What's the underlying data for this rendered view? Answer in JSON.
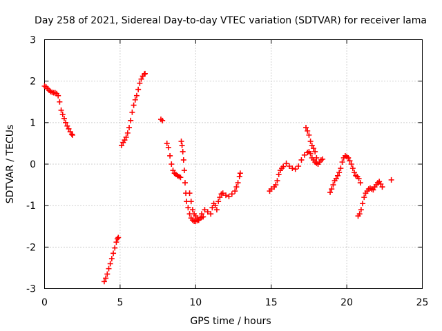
{
  "chart_data": {
    "type": "scatter",
    "title": "Day 258 of 2021, Sidereal Day-to-day VTEC variation (SDTVAR) for receiver lama",
    "xlabel": "GPS time / hours",
    "ylabel": "SDTVAR / TECUs",
    "xlim": [
      0,
      25
    ],
    "ylim": [
      -3,
      3
    ],
    "xticks": [
      0,
      5,
      10,
      15,
      20,
      25
    ],
    "yticks": [
      -3,
      -2,
      -1,
      0,
      1,
      2,
      3
    ],
    "grid": true,
    "legend": "none",
    "marker": "+",
    "color": "#ff0000",
    "series": [
      {
        "points": [
          [
            0.0,
            1.88
          ],
          [
            0.1,
            1.86
          ],
          [
            0.2,
            1.82
          ],
          [
            0.3,
            1.78
          ],
          [
            0.4,
            1.75
          ],
          [
            0.5,
            1.73
          ],
          [
            0.6,
            1.72
          ],
          [
            0.7,
            1.72
          ],
          [
            0.8,
            1.7
          ],
          [
            0.9,
            1.65
          ],
          [
            1.0,
            1.5
          ],
          [
            1.1,
            1.3
          ],
          [
            1.2,
            1.2
          ],
          [
            1.3,
            1.1
          ],
          [
            1.4,
            1.0
          ],
          [
            1.5,
            0.92
          ],
          [
            1.6,
            0.85
          ],
          [
            1.7,
            0.78
          ],
          [
            1.8,
            0.72
          ],
          [
            1.85,
            0.7
          ],
          [
            3.95,
            -2.83
          ],
          [
            4.05,
            -2.75
          ],
          [
            4.15,
            -2.65
          ],
          [
            4.25,
            -2.52
          ],
          [
            4.35,
            -2.4
          ],
          [
            4.45,
            -2.28
          ],
          [
            4.55,
            -2.15
          ],
          [
            4.65,
            -2.02
          ],
          [
            4.75,
            -1.88
          ],
          [
            4.82,
            -1.8
          ],
          [
            4.88,
            -1.77
          ],
          [
            5.1,
            0.45
          ],
          [
            5.2,
            0.52
          ],
          [
            5.3,
            0.58
          ],
          [
            5.4,
            0.65
          ],
          [
            5.5,
            0.75
          ],
          [
            5.6,
            0.88
          ],
          [
            5.7,
            1.05
          ],
          [
            5.8,
            1.25
          ],
          [
            5.9,
            1.42
          ],
          [
            6.0,
            1.55
          ],
          [
            6.1,
            1.65
          ],
          [
            6.2,
            1.8
          ],
          [
            6.3,
            1.95
          ],
          [
            6.4,
            2.05
          ],
          [
            6.5,
            2.12
          ],
          [
            6.6,
            2.17
          ],
          [
            6.65,
            2.18
          ],
          [
            7.7,
            1.08
          ],
          [
            7.8,
            1.05
          ],
          [
            8.1,
            0.5
          ],
          [
            8.2,
            0.4
          ],
          [
            8.3,
            0.2
          ],
          [
            8.4,
            0.0
          ],
          [
            8.5,
            -0.15
          ],
          [
            8.6,
            -0.22
          ],
          [
            8.7,
            -0.25
          ],
          [
            8.8,
            -0.28
          ],
          [
            8.9,
            -0.3
          ],
          [
            9.0,
            -0.32
          ],
          [
            9.05,
            0.55
          ],
          [
            9.1,
            0.45
          ],
          [
            9.15,
            0.3
          ],
          [
            9.2,
            0.1
          ],
          [
            9.25,
            -0.15
          ],
          [
            9.3,
            -0.45
          ],
          [
            9.35,
            -0.7
          ],
          [
            9.4,
            -0.9
          ],
          [
            9.5,
            -1.05
          ],
          [
            9.6,
            -1.2
          ],
          [
            9.7,
            -1.3
          ],
          [
            9.8,
            -1.35
          ],
          [
            9.9,
            -1.38
          ],
          [
            10.0,
            -1.38
          ],
          [
            10.1,
            -1.36
          ],
          [
            10.2,
            -1.34
          ],
          [
            10.3,
            -1.3
          ],
          [
            10.4,
            -1.28
          ],
          [
            10.5,
            -1.27
          ],
          [
            9.6,
            -0.7
          ],
          [
            9.7,
            -0.9
          ],
          [
            9.8,
            -1.1
          ],
          [
            9.9,
            -1.2
          ],
          [
            10.0,
            -1.25
          ],
          [
            10.1,
            -1.3
          ],
          [
            10.2,
            -1.35
          ],
          [
            10.4,
            -1.2
          ],
          [
            10.6,
            -1.1
          ],
          [
            10.8,
            -1.15
          ],
          [
            11.0,
            -1.2
          ],
          [
            11.1,
            -1.05
          ],
          [
            11.2,
            -0.95
          ],
          [
            11.3,
            -1.0
          ],
          [
            11.4,
            -1.1
          ],
          [
            11.5,
            -0.9
          ],
          [
            11.6,
            -0.8
          ],
          [
            11.7,
            -0.72
          ],
          [
            11.8,
            -0.7
          ],
          [
            12.0,
            -0.75
          ],
          [
            12.2,
            -0.78
          ],
          [
            12.4,
            -0.72
          ],
          [
            12.6,
            -0.65
          ],
          [
            12.7,
            -0.55
          ],
          [
            12.8,
            -0.45
          ],
          [
            12.9,
            -0.3
          ],
          [
            12.95,
            -0.22
          ],
          [
            14.9,
            -0.65
          ],
          [
            15.0,
            -0.6
          ],
          [
            15.2,
            -0.55
          ],
          [
            15.3,
            -0.5
          ],
          [
            15.4,
            -0.4
          ],
          [
            15.5,
            -0.25
          ],
          [
            15.6,
            -0.15
          ],
          [
            15.7,
            -0.1
          ],
          [
            15.8,
            -0.06
          ],
          [
            16.0,
            0.02
          ],
          [
            16.2,
            -0.05
          ],
          [
            16.4,
            -0.1
          ],
          [
            16.6,
            -0.12
          ],
          [
            16.8,
            -0.05
          ],
          [
            17.0,
            0.1
          ],
          [
            17.2,
            0.22
          ],
          [
            17.4,
            0.28
          ],
          [
            17.5,
            0.3
          ],
          [
            17.6,
            0.25
          ],
          [
            17.7,
            0.15
          ],
          [
            17.8,
            0.1
          ],
          [
            17.9,
            0.05
          ],
          [
            18.0,
            0.02
          ],
          [
            17.3,
            0.88
          ],
          [
            17.4,
            0.8
          ],
          [
            17.5,
            0.7
          ],
          [
            17.6,
            0.55
          ],
          [
            17.7,
            0.45
          ],
          [
            17.8,
            0.38
          ],
          [
            17.9,
            0.3
          ],
          [
            18.0,
            0.15
          ],
          [
            18.1,
            0.0
          ],
          [
            18.2,
            0.05
          ],
          [
            18.3,
            0.1
          ],
          [
            18.4,
            0.12
          ],
          [
            18.9,
            -0.68
          ],
          [
            19.0,
            -0.6
          ],
          [
            19.1,
            -0.5
          ],
          [
            19.2,
            -0.4
          ],
          [
            19.3,
            -0.35
          ],
          [
            19.4,
            -0.28
          ],
          [
            19.5,
            -0.2
          ],
          [
            19.6,
            -0.1
          ],
          [
            19.7,
            0.05
          ],
          [
            19.8,
            0.15
          ],
          [
            19.9,
            0.2
          ],
          [
            20.0,
            0.18
          ],
          [
            20.1,
            0.15
          ],
          [
            20.2,
            0.08
          ],
          [
            20.3,
            0.0
          ],
          [
            20.4,
            -0.1
          ],
          [
            20.5,
            -0.2
          ],
          [
            20.6,
            -0.28
          ],
          [
            20.7,
            -0.3
          ],
          [
            20.8,
            -0.35
          ],
          [
            20.9,
            -0.45
          ],
          [
            20.75,
            -1.25
          ],
          [
            20.85,
            -1.2
          ],
          [
            20.95,
            -1.1
          ],
          [
            21.05,
            -0.95
          ],
          [
            21.15,
            -0.8
          ],
          [
            21.25,
            -0.7
          ],
          [
            21.35,
            -0.65
          ],
          [
            21.45,
            -0.6
          ],
          [
            21.55,
            -0.58
          ],
          [
            21.65,
            -0.6
          ],
          [
            21.75,
            -0.62
          ],
          [
            21.85,
            -0.55
          ],
          [
            21.95,
            -0.5
          ],
          [
            22.05,
            -0.45
          ],
          [
            22.15,
            -0.42
          ],
          [
            22.25,
            -0.48
          ],
          [
            22.35,
            -0.55
          ],
          [
            22.95,
            -0.38
          ]
        ]
      }
    ]
  }
}
